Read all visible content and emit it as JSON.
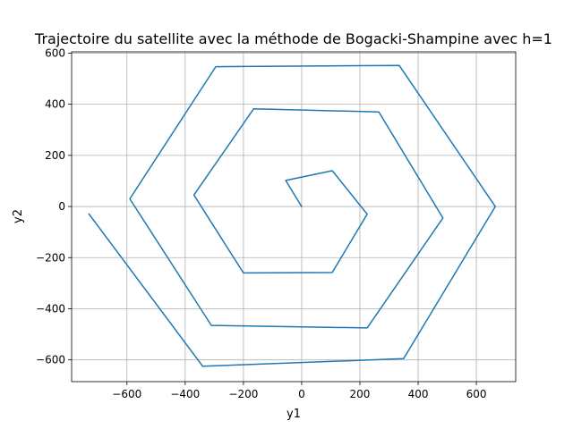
{
  "chart_data": {
    "type": "line",
    "title": "Trajectoire du satellite avec la méthode de Bogacki-Shampine avec h=1",
    "xlabel": "y1",
    "ylabel": "y2",
    "xlim": [
      -790,
      735
    ],
    "ylim": [
      -685,
      605
    ],
    "xticks": [
      -600,
      -400,
      -200,
      0,
      200,
      400,
      600
    ],
    "yticks": [
      -600,
      -400,
      -200,
      0,
      200,
      400,
      600
    ],
    "grid": true,
    "series": [
      {
        "color": "#1f77b4",
        "x": [
          0,
          -55,
          105,
          225,
          105,
          -200,
          -370,
          -165,
          265,
          485,
          225,
          -310,
          -590,
          -295,
          335,
          665,
          350,
          -340,
          -730
        ],
        "y": [
          0,
          102,
          140,
          -30,
          -258,
          -260,
          45,
          382,
          370,
          -45,
          -475,
          -465,
          30,
          547,
          552,
          0,
          -595,
          -625,
          -30
        ]
      }
    ]
  }
}
